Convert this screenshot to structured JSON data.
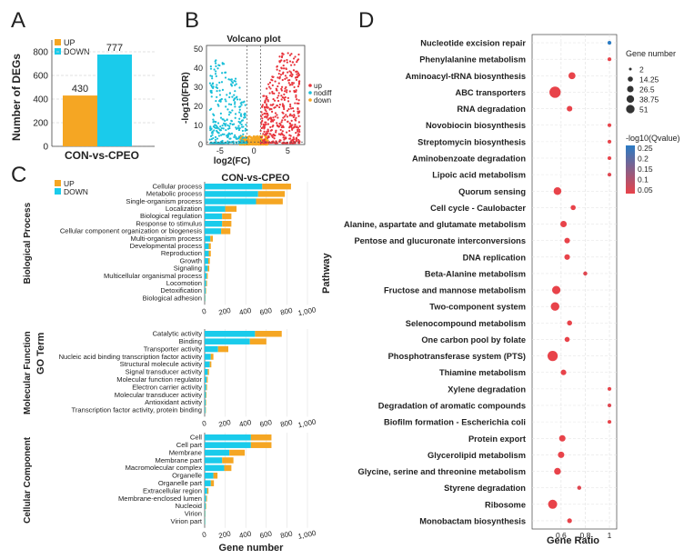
{
  "panel_letters": [
    "A",
    "B",
    "C",
    "D"
  ],
  "chart_data": [
    {
      "panel": "A",
      "type": "bar",
      "ylabel": "Number of DEGs",
      "xlabel": "CON-vs-CPEO",
      "legend": [
        {
          "name": "UP",
          "color": "#F5A623"
        },
        {
          "name": "DOWN",
          "color": "#1ACBEB"
        }
      ],
      "categories": [
        "UP",
        "DOWN"
      ],
      "values": [
        430,
        777
      ],
      "value_labels": [
        "430",
        "777"
      ],
      "ylim": [
        0,
        900
      ],
      "yticks": [
        "0",
        "200",
        "400",
        "600",
        "800"
      ]
    },
    {
      "panel": "B",
      "type": "scatter",
      "title": "Volcano plot",
      "xlabel": "log2(FC)",
      "ylabel": "-log10(FDR)",
      "xticks": [
        "-5",
        "0",
        "5"
      ],
      "yticks": [
        "0",
        "10",
        "20",
        "30",
        "40",
        "50"
      ],
      "xlim": [
        -7,
        7.5
      ],
      "ylim": [
        0,
        52
      ],
      "legend": [
        {
          "name": "up",
          "color": "#E8343C"
        },
        {
          "name": "nodiff",
          "color": "#1ABFD8"
        },
        {
          "name": "down",
          "color": "#F5A623"
        }
      ]
    },
    {
      "panel": "C",
      "type": "bar",
      "title": "CON-vs-CPEO",
      "xlabel": "Gene number",
      "ylabel": "GO Term",
      "legend": [
        {
          "name": "UP",
          "color": "#F5A623"
        },
        {
          "name": "DOWN",
          "color": "#1ACBEB"
        }
      ],
      "xticks": [
        "0",
        "200",
        "400",
        "600",
        "800",
        "1,000"
      ],
      "xlim": [
        0,
        1000
      ],
      "groups": [
        {
          "name": "Biological Process",
          "terms": [
            {
              "label": "Cellular process",
              "down": 560,
              "up": 280
            },
            {
              "label": "Metabolic process",
              "down": 520,
              "up": 260
            },
            {
              "label": "Single-organism process",
              "down": 500,
              "up": 260
            },
            {
              "label": "Localization",
              "down": 200,
              "up": 110
            },
            {
              "label": "Biological regulation",
              "down": 170,
              "up": 90
            },
            {
              "label": "Response to stimulus",
              "down": 170,
              "up": 90
            },
            {
              "label": "Cellular component organization or biogenesis",
              "down": 160,
              "up": 90
            },
            {
              "label": "Multi-organism process",
              "down": 55,
              "up": 25
            },
            {
              "label": "Developmental process",
              "down": 40,
              "up": 20
            },
            {
              "label": "Reproduction",
              "down": 40,
              "up": 20
            },
            {
              "label": "Growth",
              "down": 35,
              "up": 15
            },
            {
              "label": "Signaling",
              "down": 30,
              "up": 15
            },
            {
              "label": "Multicellular organismal process",
              "down": 20,
              "up": 10
            },
            {
              "label": "Locomotion",
              "down": 15,
              "up": 8
            },
            {
              "label": "Detoxification",
              "down": 10,
              "up": 5
            },
            {
              "label": "Biological adhesion",
              "down": 6,
              "up": 3
            }
          ]
        },
        {
          "name": "Molecular Function",
          "terms": [
            {
              "label": "Catalytic activity",
              "down": 490,
              "up": 260
            },
            {
              "label": "Binding",
              "down": 440,
              "up": 160
            },
            {
              "label": "Transporter activity",
              "down": 130,
              "up": 100
            },
            {
              "label": "Nucleic acid binding transcription factor activity",
              "down": 60,
              "up": 25
            },
            {
              "label": "Structural molecule activity",
              "down": 50,
              "up": 15
            },
            {
              "label": "Signal transducer activity",
              "down": 30,
              "up": 12
            },
            {
              "label": "Molecular function regulator",
              "down": 20,
              "up": 10
            },
            {
              "label": "Electron carrier activity",
              "down": 15,
              "up": 8
            },
            {
              "label": "Molecular transducer activity",
              "down": 12,
              "up": 6
            },
            {
              "label": "Antioxidant activity",
              "down": 10,
              "up": 5
            },
            {
              "label": "Transcription factor activity, protein binding",
              "down": 8,
              "up": 4
            }
          ]
        },
        {
          "name": "Cellular Component",
          "terms": [
            {
              "label": "Cell",
              "down": 450,
              "up": 200
            },
            {
              "label": "Cell part",
              "down": 450,
              "up": 200
            },
            {
              "label": "Membrane",
              "down": 240,
              "up": 150
            },
            {
              "label": "Membrane part",
              "down": 170,
              "up": 110
            },
            {
              "label": "Macromolecular complex",
              "down": 190,
              "up": 70
            },
            {
              "label": "Organelle",
              "down": 85,
              "up": 40
            },
            {
              "label": "Organelle part",
              "down": 60,
              "up": 30
            },
            {
              "label": "Extracellular region",
              "down": 25,
              "up": 12
            },
            {
              "label": "Membrane-enclosed lumen",
              "down": 15,
              "up": 8
            },
            {
              "label": "Nucleoid",
              "down": 10,
              "up": 5
            },
            {
              "label": "Virion",
              "down": 6,
              "up": 3
            },
            {
              "label": "Virion part",
              "down": 5,
              "up": 2
            }
          ]
        }
      ]
    },
    {
      "panel": "D",
      "type": "scatter",
      "xlabel": "Gene Ratio",
      "ylabel": "Pathway",
      "xticks": [
        "0.6",
        "0.8",
        "1"
      ],
      "xlim": [
        0.36,
        1.06
      ],
      "size_legend_title": "Gene number",
      "size_legend": [
        "2",
        "14.25",
        "26.5",
        "38.75",
        "51"
      ],
      "color_legend_title": "-log10(Qvalue)",
      "color_legend_labels": [
        "0.25",
        "0.2",
        "0.15",
        "0.1",
        "0.05"
      ],
      "color_low": "#E8434A",
      "color_high": "#2A7BC4",
      "points": [
        {
          "pathway": "Nucleotide excision repair",
          "ratio": 1.0,
          "genes": 2,
          "q": 0.25
        },
        {
          "pathway": "Phenylalanine metabolism",
          "ratio": 1.0,
          "genes": 2,
          "q": 0.05
        },
        {
          "pathway": "Aminoacyl-tRNA biosynthesis",
          "ratio": 0.69,
          "genes": 15,
          "q": 0.05
        },
        {
          "pathway": "ABC transporters",
          "ratio": 0.55,
          "genes": 51,
          "q": 0.05
        },
        {
          "pathway": "RNA degradation",
          "ratio": 0.67,
          "genes": 8,
          "q": 0.05
        },
        {
          "pathway": "Novobiocin biosynthesis",
          "ratio": 1.0,
          "genes": 2,
          "q": 0.05
        },
        {
          "pathway": "Streptomycin biosynthesis",
          "ratio": 1.0,
          "genes": 2,
          "q": 0.05
        },
        {
          "pathway": "Aminobenzoate degradation",
          "ratio": 1.0,
          "genes": 2,
          "q": 0.05
        },
        {
          "pathway": "Lipoic acid metabolism",
          "ratio": 1.0,
          "genes": 2,
          "q": 0.06
        },
        {
          "pathway": "Quorum sensing",
          "ratio": 0.57,
          "genes": 20,
          "q": 0.05
        },
        {
          "pathway": "Cell cycle - Caulobacter",
          "ratio": 0.7,
          "genes": 6,
          "q": 0.05
        },
        {
          "pathway": "Alanine, aspartate and glutamate metabolism",
          "ratio": 0.62,
          "genes": 12,
          "q": 0.05
        },
        {
          "pathway": "Pentose and glucuronate interconversions",
          "ratio": 0.65,
          "genes": 8,
          "q": 0.05
        },
        {
          "pathway": "DNA replication",
          "ratio": 0.65,
          "genes": 8,
          "q": 0.05
        },
        {
          "pathway": "Beta-Alanine metabolism",
          "ratio": 0.8,
          "genes": 3,
          "q": 0.06
        },
        {
          "pathway": "Fructose and mannose metabolism",
          "ratio": 0.56,
          "genes": 24,
          "q": 0.05
        },
        {
          "pathway": "Two-component system",
          "ratio": 0.55,
          "genes": 26,
          "q": 0.05
        },
        {
          "pathway": "Selenocompound metabolism",
          "ratio": 0.67,
          "genes": 6,
          "q": 0.05
        },
        {
          "pathway": "One carbon pool by folate",
          "ratio": 0.65,
          "genes": 6,
          "q": 0.05
        },
        {
          "pathway": "Phosphotransferase system (PTS)",
          "ratio": 0.53,
          "genes": 40,
          "q": 0.05
        },
        {
          "pathway": "Thiamine metabolism",
          "ratio": 0.62,
          "genes": 8,
          "q": 0.05
        },
        {
          "pathway": "Xylene degradation",
          "ratio": 1.0,
          "genes": 2,
          "q": 0.05
        },
        {
          "pathway": "Degradation of aromatic compounds",
          "ratio": 1.0,
          "genes": 2,
          "q": 0.06
        },
        {
          "pathway": "Biofilm formation - Escherichia coli",
          "ratio": 1.0,
          "genes": 2,
          "q": 0.05
        },
        {
          "pathway": "Protein export",
          "ratio": 0.61,
          "genes": 12,
          "q": 0.05
        },
        {
          "pathway": "Glycerolipid metabolism",
          "ratio": 0.6,
          "genes": 12,
          "q": 0.05
        },
        {
          "pathway": "Glycine, serine and threonine metabolism",
          "ratio": 0.57,
          "genes": 14,
          "q": 0.05
        },
        {
          "pathway": "Styrene degradation",
          "ratio": 0.75,
          "genes": 3,
          "q": 0.06
        },
        {
          "pathway": "Ribosome",
          "ratio": 0.53,
          "genes": 30,
          "q": 0.05
        },
        {
          "pathway": "Monobactam biosynthesis",
          "ratio": 0.67,
          "genes": 5,
          "q": 0.05
        }
      ]
    }
  ]
}
